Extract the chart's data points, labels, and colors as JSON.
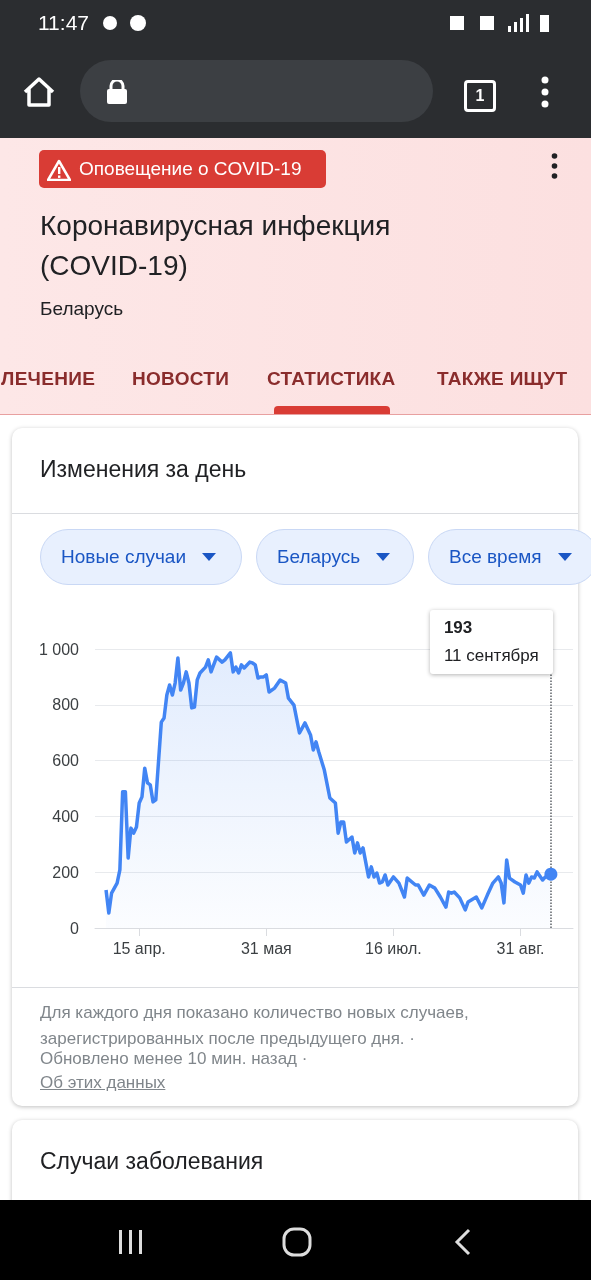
{
  "chart_data": {
    "type": "area",
    "title": "Изменения за день",
    "color": "#4285f4",
    "grid": "y",
    "x": [
      "--04-03",
      "--04-04",
      "--04-05",
      "--04-07",
      "--04-08",
      "--04-09",
      "--04-10",
      "--04-11",
      "--04-12",
      "--04-13",
      "--04-14",
      "--04-15",
      "--04-16",
      "--04-17",
      "--04-18",
      "--04-19",
      "--04-20",
      "--04-21",
      "--04-23",
      "--04-24",
      "--04-25",
      "--04-26",
      "--04-27",
      "--04-28",
      "--04-29",
      "--04-30",
      "--05-01",
      "--05-02",
      "--05-03",
      "--05-04",
      "--05-05",
      "--05-06",
      "--05-07",
      "--05-09",
      "--05-10",
      "--05-11",
      "--05-13",
      "--05-15",
      "--05-16",
      "--05-18",
      "--05-19",
      "--05-20",
      "--05-21",
      "--05-22",
      "--05-23",
      "--05-25",
      "--05-26",
      "--05-27",
      "--05-28",
      "--05-29",
      "--05-30",
      "--05-31",
      "--06-01",
      "--06-03",
      "--06-05",
      "--06-07",
      "--06-08",
      "--06-10",
      "--06-12",
      "--06-14",
      "--06-16",
      "--06-17",
      "--06-18",
      "--06-19",
      "--06-21",
      "--06-23",
      "--06-25",
      "--06-26",
      "--06-27",
      "--06-28",
      "--06-29",
      "--07-01",
      "--07-02",
      "--07-03",
      "--07-04",
      "--07-05",
      "--07-07",
      "--07-08",
      "--07-09",
      "--07-10",
      "--07-11",
      "--07-12",
      "--07-13",
      "--07-14",
      "--07-16",
      "--07-18",
      "--07-20",
      "--07-21",
      "--07-24",
      "--07-25",
      "--07-27",
      "--07-29",
      "--07-31",
      "--08-02",
      "--08-04",
      "--08-05",
      "--08-06",
      "--08-07",
      "--08-09",
      "--08-11",
      "--08-12",
      "--08-15",
      "--08-17",
      "--08-19",
      "--08-21",
      "--08-23",
      "--08-24",
      "--08-25",
      "--08-26",
      "--08-27",
      "--08-29",
      "--08-31",
      "--09-01",
      "--09-02",
      "--09-03",
      "--09-04",
      "--09-05",
      "--09-06",
      "--09-08",
      "--09-09",
      "--09-11"
    ],
    "values": [
      136,
      54,
      125,
      161,
      208,
      488,
      488,
      251,
      358,
      340,
      362,
      448,
      470,
      573,
      520,
      513,
      452,
      459,
      738,
      753,
      835,
      871,
      835,
      878,
      968,
      853,
      878,
      918,
      878,
      789,
      792,
      889,
      914,
      935,
      961,
      918,
      971,
      953,
      961,
      986,
      918,
      935,
      914,
      943,
      932,
      953,
      950,
      943,
      896,
      900,
      900,
      907,
      846,
      860,
      889,
      878,
      824,
      799,
      699,
      735,
      692,
      638,
      667,
      631,
      566,
      466,
      448,
      340,
      380,
      380,
      308,
      326,
      269,
      305,
      269,
      287,
      183,
      219,
      183,
      197,
      161,
      165,
      190,
      154,
      183,
      161,
      111,
      179,
      154,
      154,
      118,
      154,
      143,
      111,
      75,
      129,
      125,
      129,
      108,
      65,
      93,
      111,
      72,
      118,
      161,
      183,
      161,
      90,
      244,
      179,
      165,
      154,
      125,
      190,
      161,
      183,
      179,
      201,
      172,
      183,
      193
    ],
    "xlim": [
      "--03-30",
      "--09-19"
    ],
    "xticks": [
      {
        "value": "--04-15",
        "label": "15 апр."
      },
      {
        "value": "--05-31",
        "label": "31 мая"
      },
      {
        "value": "--07-16",
        "label": "16 июл."
      },
      {
        "value": "--08-31",
        "label": "31 авг."
      }
    ],
    "ylim": [
      0,
      1000
    ],
    "yticks": [
      0,
      200,
      400,
      600,
      800,
      {
        "value": 1000,
        "label": "1 000"
      }
    ],
    "ref_lines": [
      {
        "axis": "x",
        "value": "--09-11",
        "line_style": "dotted",
        "color": "#5f6368"
      }
    ],
    "annotations": [
      "11:47",
      "1",
      "Оповещение о COVID-19",
      "Коронавирусная инфекция (COVID-19)",
      "Беларусь",
      "ЛЕЧЕНИЕ",
      "НОВОСТИ",
      "СТАТИСТИКА",
      "ТАКЖЕ ИЩУТ",
      "Новые случаи",
      "Беларусь",
      "Все время",
      "Для каждого дня показано количество новых случаев, зарегистрированных после предыдущего дня. ·",
      "Обновлено менее 10 мин. назад ·",
      "Об этих данных",
      "Случаи заболевания",
      "193",
      "11 сентября"
    ]
  }
}
